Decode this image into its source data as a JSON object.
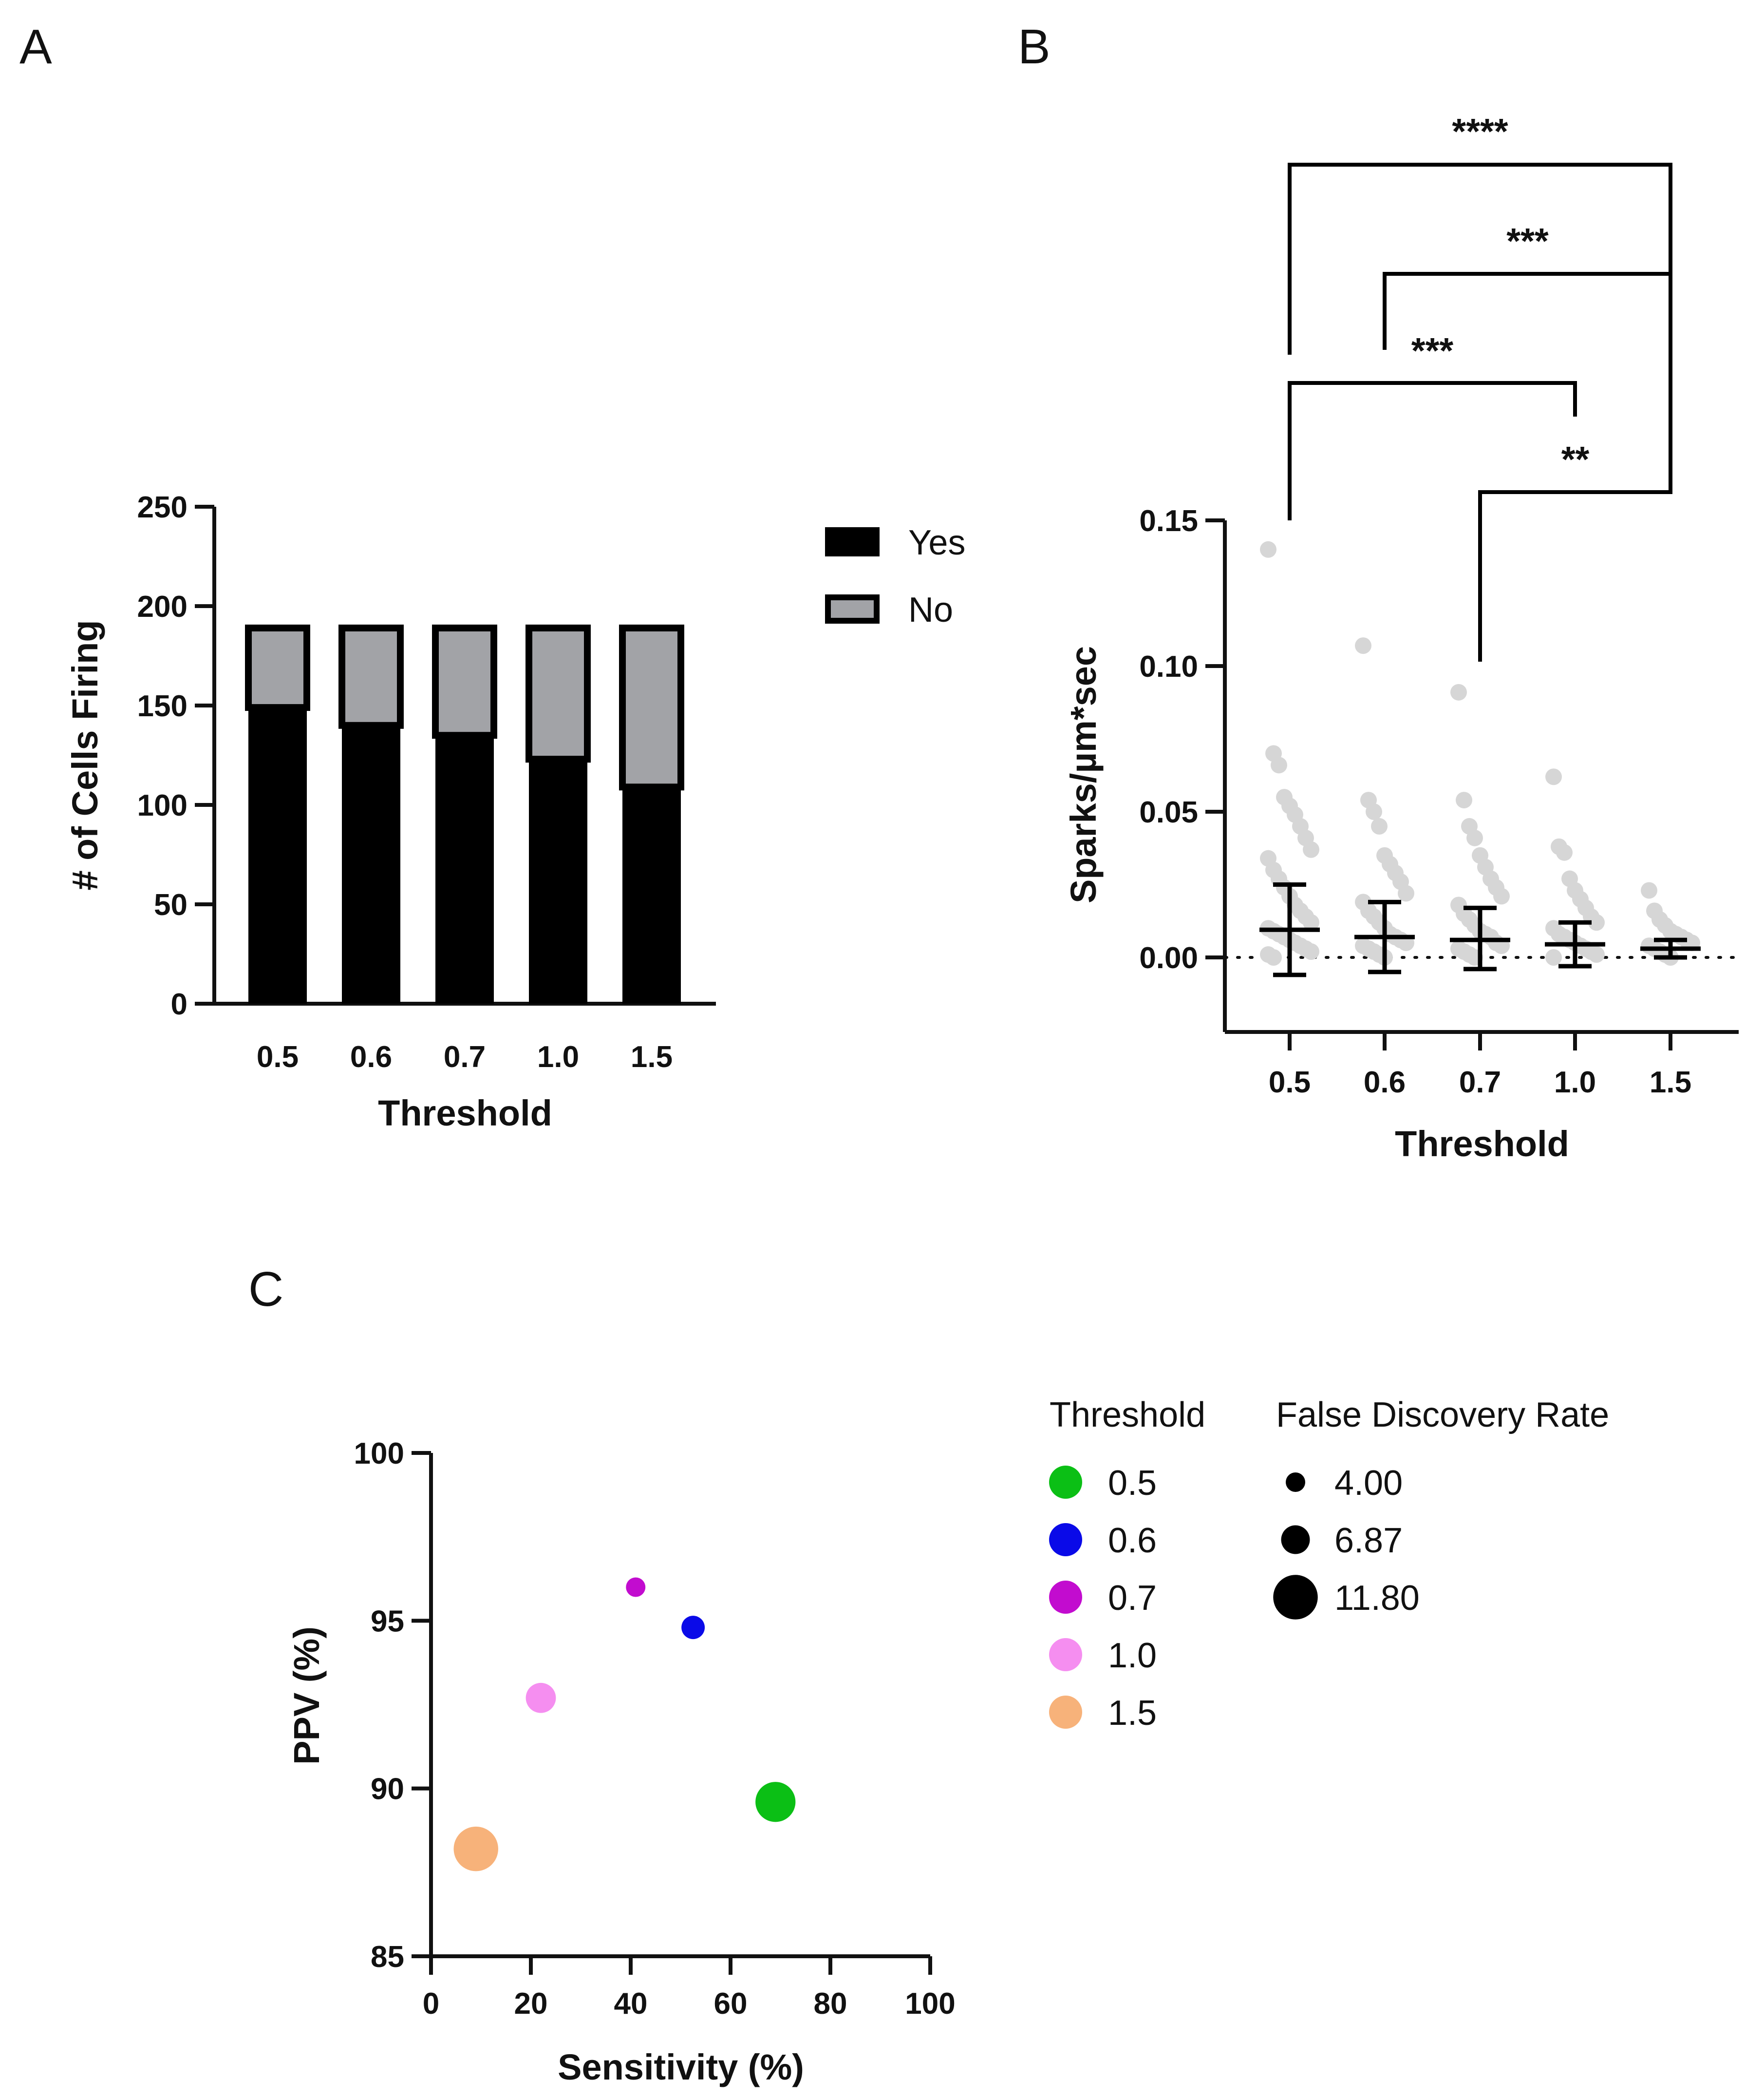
{
  "colors": {
    "yes": "#000000",
    "no": "#a2a3a7",
    "axis": "#111111",
    "dots": "#d6d6d6"
  },
  "panels": {
    "A": "A",
    "B": "B",
    "C": "C"
  },
  "chart_data": [
    {
      "panel": "A",
      "type": "bar",
      "stacked": true,
      "title": "",
      "xlabel": "Threshold",
      "ylabel": "# of Cells Firing",
      "categories": [
        "0.5",
        "0.6",
        "0.7",
        "1.0",
        "1.5"
      ],
      "series": [
        {
          "name": "Yes",
          "color": "#000000",
          "values": [
            149,
            140,
            135,
            123,
            109
          ]
        },
        {
          "name": "No",
          "color": "#a2a3a7",
          "values": [
            40,
            49,
            54,
            66,
            80
          ]
        }
      ],
      "ylim": [
        0,
        250
      ],
      "yticks": [
        0,
        50,
        100,
        150,
        200,
        250
      ],
      "ytick_labels": [
        "0",
        "50",
        "100",
        "150",
        "200",
        "250"
      ],
      "legend": {
        "placement": "top-right",
        "entries": [
          "Yes",
          "No"
        ]
      }
    },
    {
      "panel": "B",
      "type": "scatter",
      "title": "",
      "xlabel": "Threshold",
      "ylabel": "Sparks/µm*sec",
      "categories": [
        "0.5",
        "0.6",
        "0.7",
        "1.0",
        "1.5"
      ],
      "ylim": [
        -0.025,
        0.15
      ],
      "yticks": [
        0.0,
        0.05,
        0.1,
        0.15
      ],
      "ytick_labels": [
        "0.00",
        "0.05",
        "0.10",
        "0.15"
      ],
      "reference_line": 0,
      "mean": [
        0.0095,
        0.007,
        0.006,
        0.0045,
        0.003
      ],
      "sd_low": [
        -0.006,
        -0.005,
        -0.004,
        -0.003,
        0.0
      ],
      "sd_high": [
        0.025,
        0.019,
        0.017,
        0.012,
        0.006
      ],
      "points": [
        [
          0.14,
          0.07,
          0.066,
          0.055,
          0.052,
          0.049,
          0.045,
          0.041,
          0.037,
          0.034,
          0.03,
          0.027,
          0.024,
          0.021,
          0.018,
          0.016,
          0.014,
          0.012,
          0.01,
          0.009,
          0.008,
          0.007,
          0.006,
          0.005,
          0.004,
          0.003,
          0.002,
          0.001,
          0.0
        ],
        [
          0.107,
          0.054,
          0.05,
          0.045,
          0.035,
          0.032,
          0.029,
          0.026,
          0.022,
          0.019,
          0.016,
          0.014,
          0.012,
          0.01,
          0.008,
          0.007,
          0.006,
          0.005,
          0.004,
          0.003,
          0.002,
          0.001,
          0.0
        ],
        [
          0.091,
          0.054,
          0.045,
          0.041,
          0.035,
          0.031,
          0.027,
          0.024,
          0.021,
          0.018,
          0.015,
          0.013,
          0.011,
          0.009,
          0.008,
          0.007,
          0.005,
          0.004,
          0.003,
          0.002,
          0.001,
          0.0
        ],
        [
          0.062,
          0.038,
          0.036,
          0.027,
          0.023,
          0.02,
          0.017,
          0.014,
          0.012,
          0.01,
          0.008,
          0.007,
          0.006,
          0.005,
          0.004,
          0.003,
          0.002,
          0.001,
          0.0
        ],
        [
          0.023,
          0.016,
          0.013,
          0.011,
          0.009,
          0.008,
          0.007,
          0.006,
          0.005,
          0.004,
          0.003,
          0.002,
          0.001,
          0.0
        ]
      ],
      "significance": [
        {
          "from": "0.5",
          "to": "1.5",
          "label": "****"
        },
        {
          "from": "0.6",
          "to": "1.5",
          "label": "***"
        },
        {
          "from": "0.5",
          "to": "1.0",
          "label": "***"
        },
        {
          "from": "0.7",
          "to": "1.5",
          "label": "**"
        }
      ]
    },
    {
      "panel": "C",
      "type": "scatter",
      "title": "",
      "xlabel": "Sensitivity (%)",
      "ylabel": "PPV (%)",
      "xlim": [
        0,
        100
      ],
      "ylim": [
        85,
        100
      ],
      "xticks": [
        0,
        20,
        40,
        60,
        80,
        100
      ],
      "xtick_labels": [
        "0",
        "20",
        "40",
        "60",
        "80",
        "100"
      ],
      "yticks": [
        85,
        90,
        95,
        100
      ],
      "ytick_labels": [
        "85",
        "90",
        "95",
        "100"
      ],
      "points": [
        {
          "threshold": "0.5",
          "x": 69,
          "y": 89.6,
          "fdr": 10.4,
          "color": "#0bbf15"
        },
        {
          "threshold": "0.6",
          "x": 52.5,
          "y": 94.8,
          "fdr": 5.2,
          "color": "#0a0ae8"
        },
        {
          "threshold": "0.7",
          "x": 41,
          "y": 96.0,
          "fdr": 4.0,
          "color": "#c20ccf"
        },
        {
          "threshold": "1.0",
          "x": 22,
          "y": 92.7,
          "fdr": 7.3,
          "color": "#f58ef0"
        },
        {
          "threshold": "1.5",
          "x": 9,
          "y": 88.2,
          "fdr": 11.8,
          "color": "#f7b27a"
        }
      ],
      "legend_threshold": {
        "title": "Threshold",
        "entries": [
          {
            "label": "0.5",
            "color": "#0bbf15"
          },
          {
            "label": "0.6",
            "color": "#0a0ae8"
          },
          {
            "label": "0.7",
            "color": "#c20ccf"
          },
          {
            "label": "1.0",
            "color": "#f58ef0"
          },
          {
            "label": "1.5",
            "color": "#f7b27a"
          }
        ]
      },
      "legend_fdr": {
        "title": "False Discovery Rate",
        "entries": [
          {
            "label": "4.00",
            "value": 4.0
          },
          {
            "label": "6.87",
            "value": 6.87
          },
          {
            "label": "11.80",
            "value": 11.8
          }
        ]
      }
    }
  ]
}
